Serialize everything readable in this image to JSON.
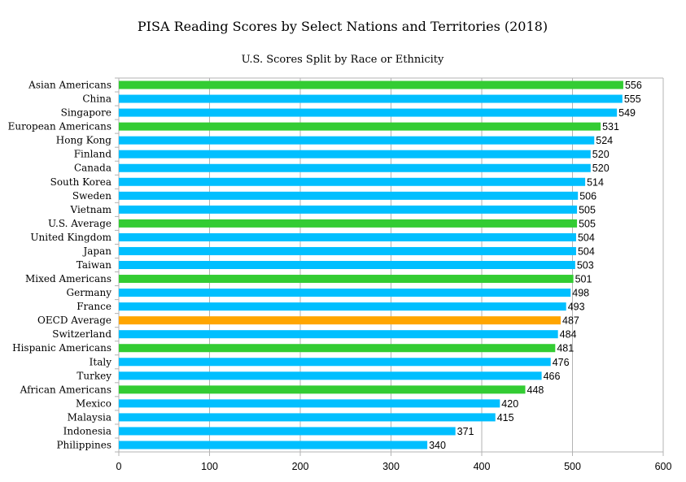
{
  "chart_data": {
    "type": "bar",
    "orientation": "horizontal",
    "title": "PISA Reading Scores by Select Nations and Territories (2018)",
    "subtitle": "U.S. Scores Split by Race or Ethnicity",
    "xlabel": "",
    "ylabel": "",
    "xlim": [
      0,
      600
    ],
    "xticks": [
      0,
      100,
      200,
      300,
      400,
      500,
      600
    ],
    "grid": true,
    "legend": "none",
    "data_labels": true,
    "colors": {
      "country": "#00bfff",
      "us_group": "#33cc33",
      "oecd": "#ffa500"
    },
    "categories": [
      "Asian Americans",
      "China",
      "Singapore",
      "European Americans",
      "Hong Kong",
      "Finland",
      "Canada",
      "South Korea",
      "Sweden",
      "Vietnam",
      "U.S. Average",
      "United Kingdom",
      "Japan",
      "Taiwan",
      "Mixed Americans",
      "Germany",
      "France",
      "OECD Average",
      "Switzerland",
      "Hispanic Americans",
      "Italy",
      "Turkey",
      "African Americans",
      "Mexico",
      "Malaysia",
      "Indonesia",
      "Philippines"
    ],
    "values": [
      556,
      555,
      549,
      531,
      524,
      520,
      520,
      514,
      506,
      505,
      505,
      504,
      504,
      503,
      501,
      498,
      493,
      487,
      484,
      481,
      476,
      466,
      448,
      420,
      415,
      371,
      340
    ],
    "groups": [
      "us_group",
      "country",
      "country",
      "us_group",
      "country",
      "country",
      "country",
      "country",
      "country",
      "country",
      "us_group",
      "country",
      "country",
      "country",
      "us_group",
      "country",
      "country",
      "oecd",
      "country",
      "us_group",
      "country",
      "country",
      "us_group",
      "country",
      "country",
      "country",
      "country"
    ]
  }
}
